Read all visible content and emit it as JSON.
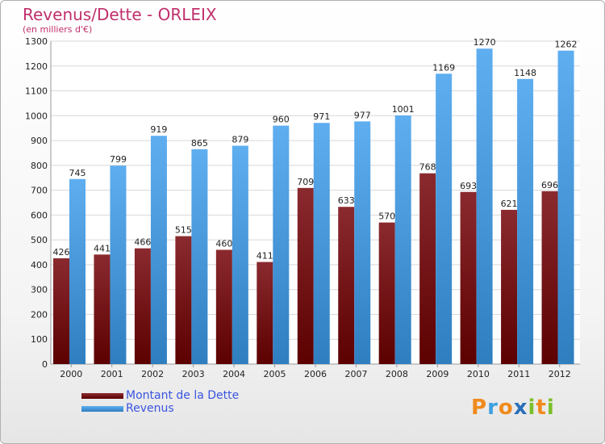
{
  "chart_data": {
    "type": "bar",
    "title": "Revenus/Dette - ORLEIX",
    "subtitle": "(en milliers d'€)",
    "categories": [
      "2000",
      "2001",
      "2002",
      "2003",
      "2004",
      "2005",
      "2006",
      "2007",
      "2008",
      "2009",
      "2010",
      "2011",
      "2012"
    ],
    "series": [
      {
        "name": "Montant de la Dette",
        "color": "#7a0c12",
        "values": [
          426,
          441,
          466,
          515,
          460,
          411,
          709,
          633,
          570,
          768,
          693,
          621,
          696
        ]
      },
      {
        "name": "Revenus",
        "color": "#4aa3e6",
        "values": [
          745,
          799,
          919,
          865,
          879,
          960,
          971,
          977,
          1001,
          1169,
          1270,
          1148,
          1262
        ]
      }
    ],
    "ylim": [
      0,
      1300
    ],
    "yticks": [
      0,
      100,
      200,
      300,
      400,
      500,
      600,
      700,
      800,
      900,
      1000,
      1100,
      1200,
      1300
    ],
    "grid": true,
    "legend_position": "bottom-left"
  },
  "logo": {
    "text": "Proxiti",
    "letters": [
      {
        "ch": "P",
        "color": "#f08a1c"
      },
      {
        "ch": "r",
        "color": "#3ca0e0"
      },
      {
        "ch": "o",
        "color": "#f08a1c"
      },
      {
        "ch": "x",
        "color": "#2a6fb8"
      },
      {
        "ch": "i",
        "color": "#7cbf2a"
      },
      {
        "ch": "t",
        "color": "#f08a1c"
      },
      {
        "ch": "i",
        "color": "#7cbf2a"
      }
    ]
  }
}
